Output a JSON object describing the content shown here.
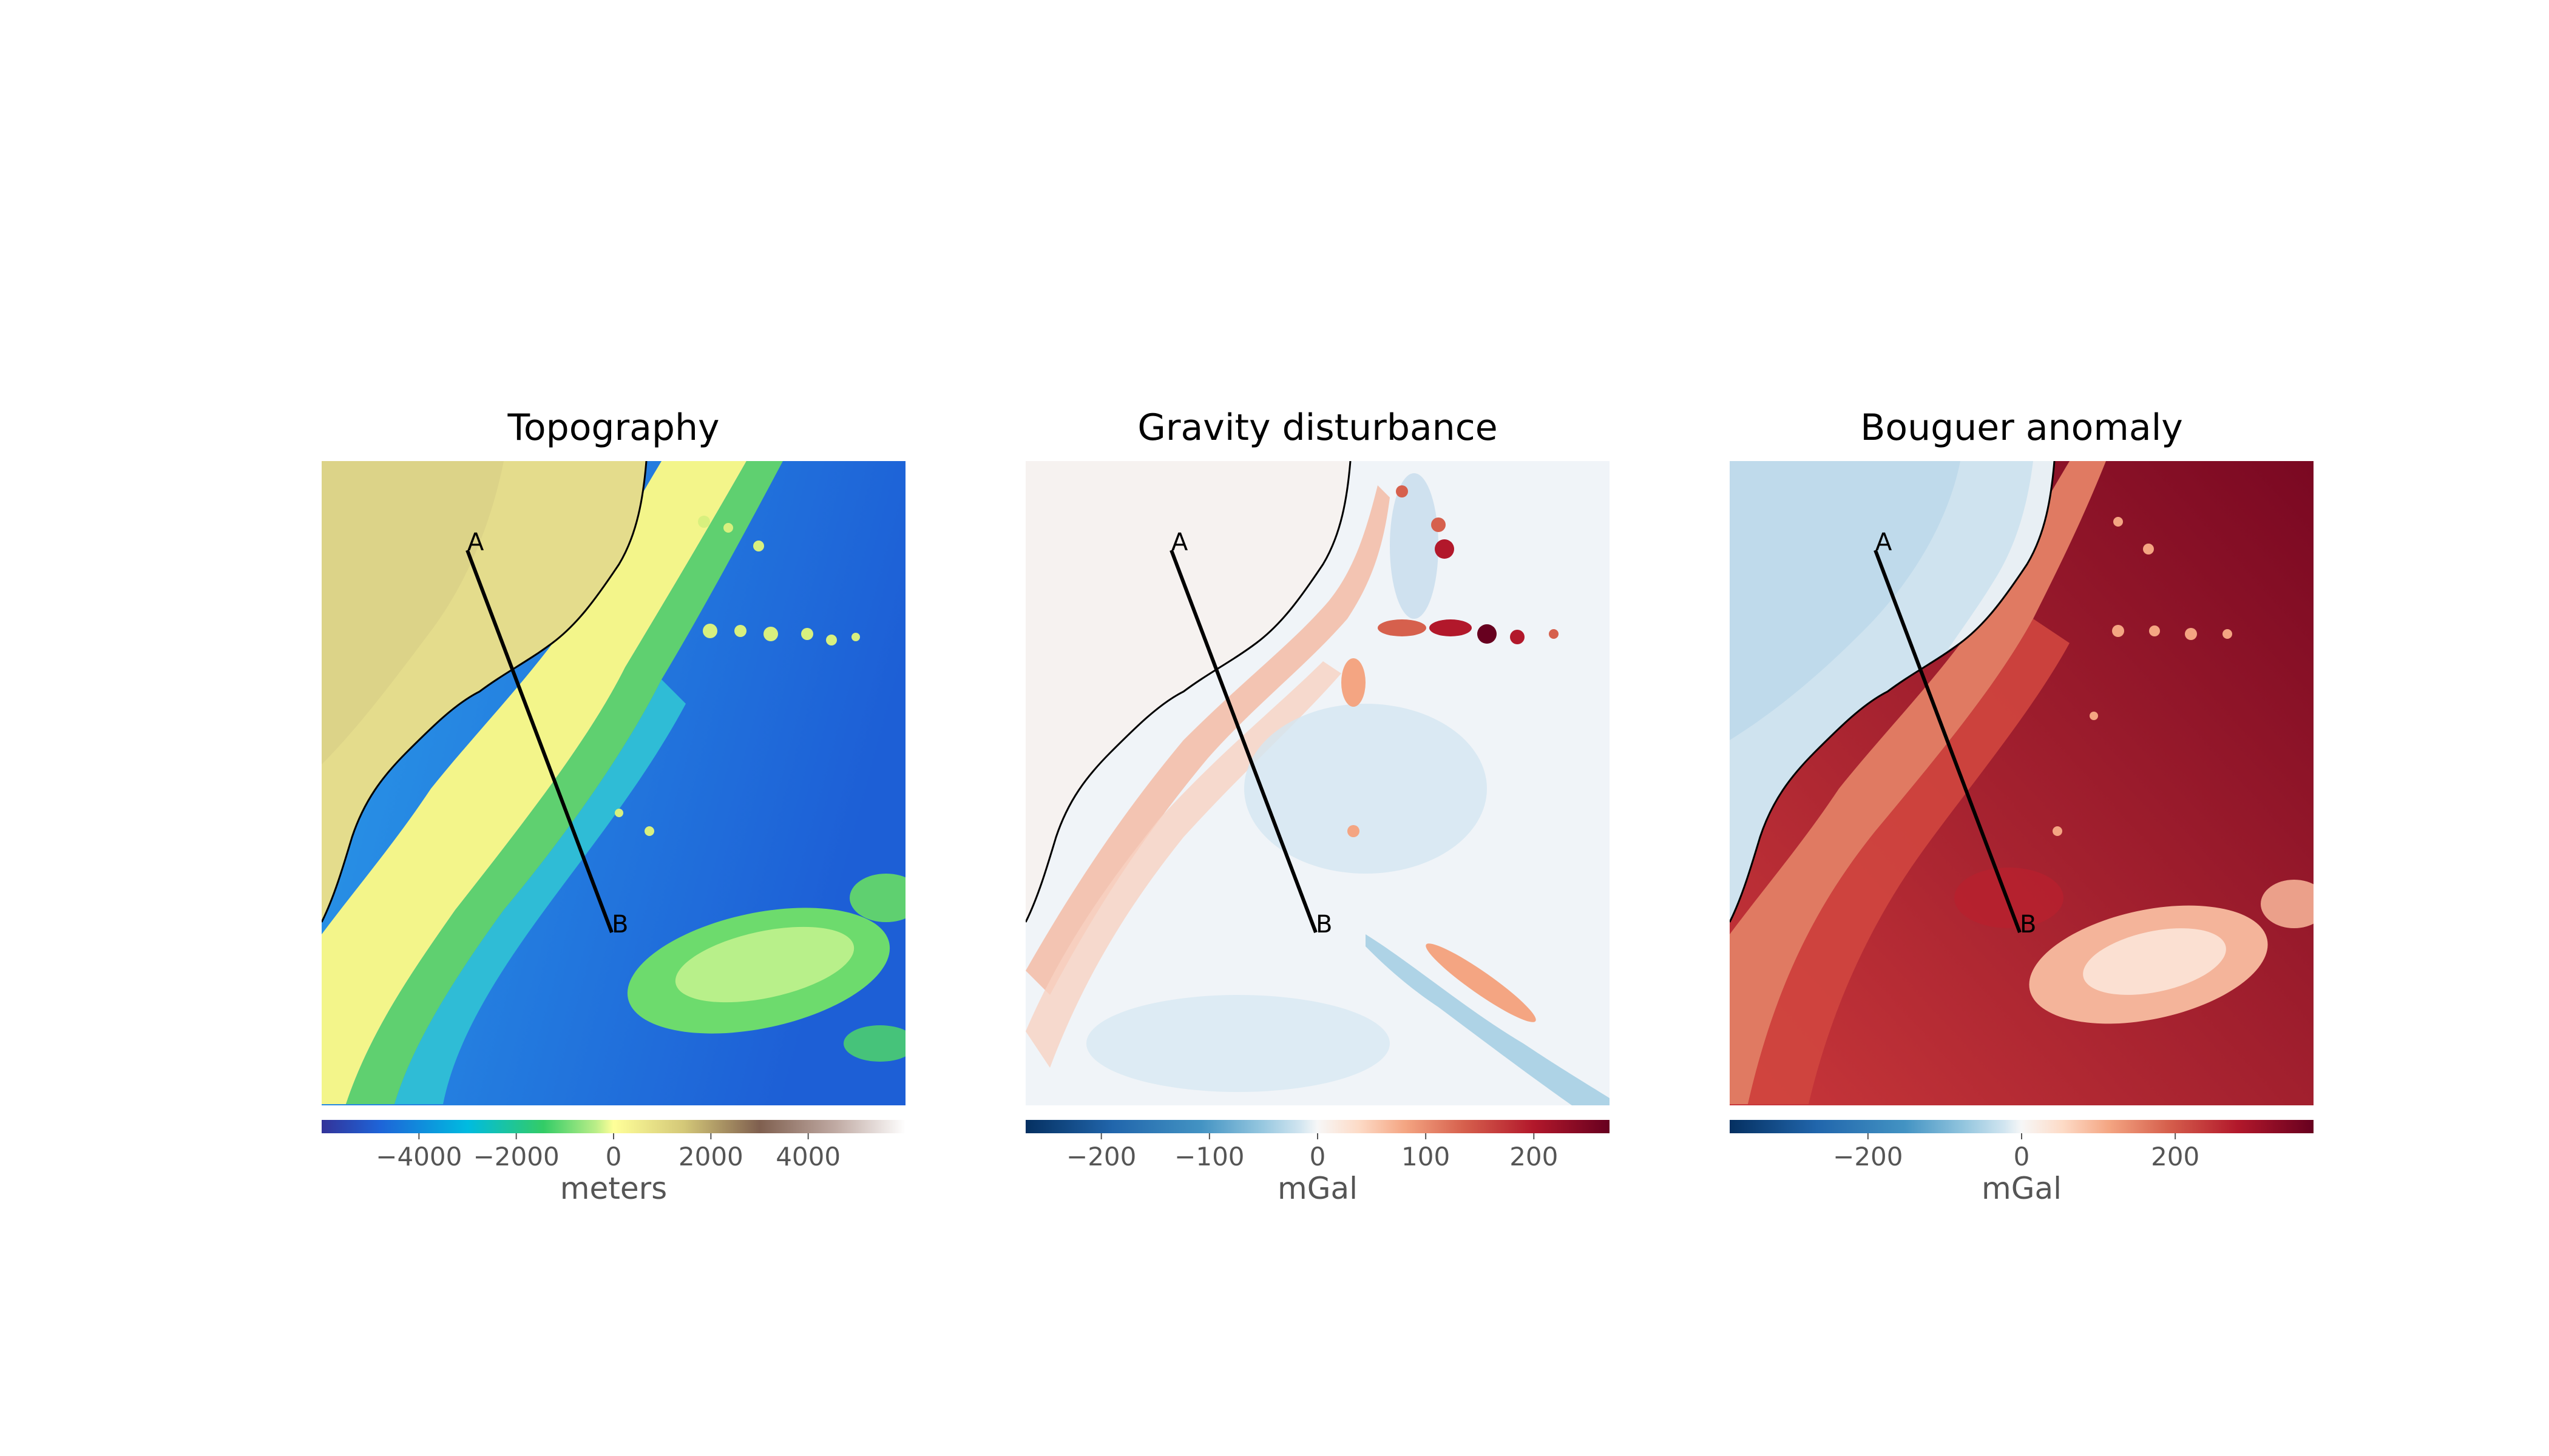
{
  "chart_data": [
    {
      "type": "heatmap",
      "title": "Topography",
      "colormap": "terrain",
      "colorbar": {
        "label": "meters",
        "range": [
          -6000,
          6000
        ],
        "ticks": [
          -4000,
          -2000,
          0,
          2000,
          4000
        ],
        "tick_labels": [
          "−4000",
          "−2000",
          "0",
          "2000",
          "4000"
        ]
      },
      "profile": {
        "start_label": "A",
        "end_label": "B"
      }
    },
    {
      "type": "heatmap",
      "title": "Gravity disturbance",
      "colormap": "RdBu_r",
      "colorbar": {
        "label": "mGal",
        "range": [
          -270,
          270
        ],
        "ticks": [
          -200,
          -100,
          0,
          100,
          200
        ],
        "tick_labels": [
          "−200",
          "−100",
          "0",
          "100",
          "200"
        ]
      },
      "profile": {
        "start_label": "A",
        "end_label": "B"
      }
    },
    {
      "type": "heatmap",
      "title": "Bouguer anomaly",
      "colormap": "RdBu_r",
      "colorbar": {
        "label": "mGal",
        "range": [
          -380,
          380
        ],
        "ticks": [
          -200,
          0,
          200
        ],
        "tick_labels": [
          "−200",
          "0",
          "200"
        ]
      },
      "profile": {
        "start_label": "A",
        "end_label": "B"
      }
    }
  ],
  "colors": {
    "coastline": "#000000",
    "profile_line": "#000000",
    "terrain_land": "#e4dc8c",
    "terrain_ocean": "#2e8ce6",
    "rdbu_red": "#67001f",
    "rdbu_blue": "#053061"
  }
}
